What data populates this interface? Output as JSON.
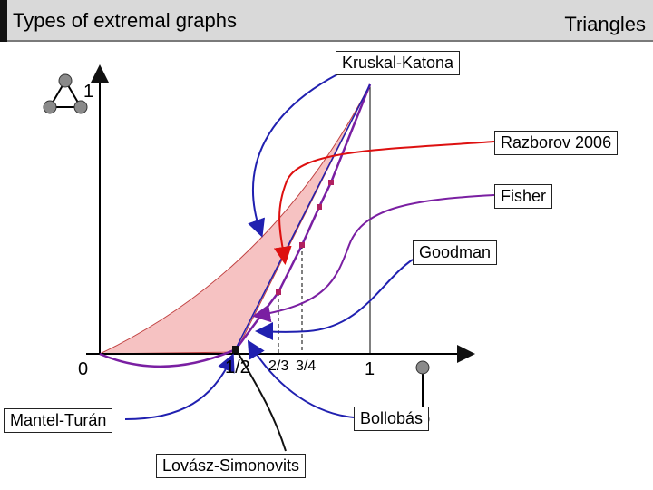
{
  "header": {
    "title": "Types of extremal graphs",
    "right": "Triangles"
  },
  "labels": {
    "kruskal": "Kruskal-Katona",
    "razborov": "Razborov 2006",
    "fisher": "Fisher",
    "goodman": "Goodman",
    "mantel": "Mantel-Turán",
    "bollobas": "Bollobás",
    "lovasz": "Lovász-Simonovits"
  },
  "ticks": {
    "y_one": "1",
    "x_zero": "0",
    "x_half": "1/2",
    "x_two_thirds": "2/3",
    "x_three_quarters": "3/4",
    "x_one": "1"
  },
  "colors": {
    "fill": "#f6c2c2",
    "fill_edge": "#c04040",
    "purple": "#7a1fa2",
    "blue": "#2020b0",
    "red": "#dd1010",
    "marker": "#b02060",
    "node": "#8a8a8a"
  },
  "icons": [
    "triangle-graph-icon",
    "edge-graph-icon"
  ]
}
